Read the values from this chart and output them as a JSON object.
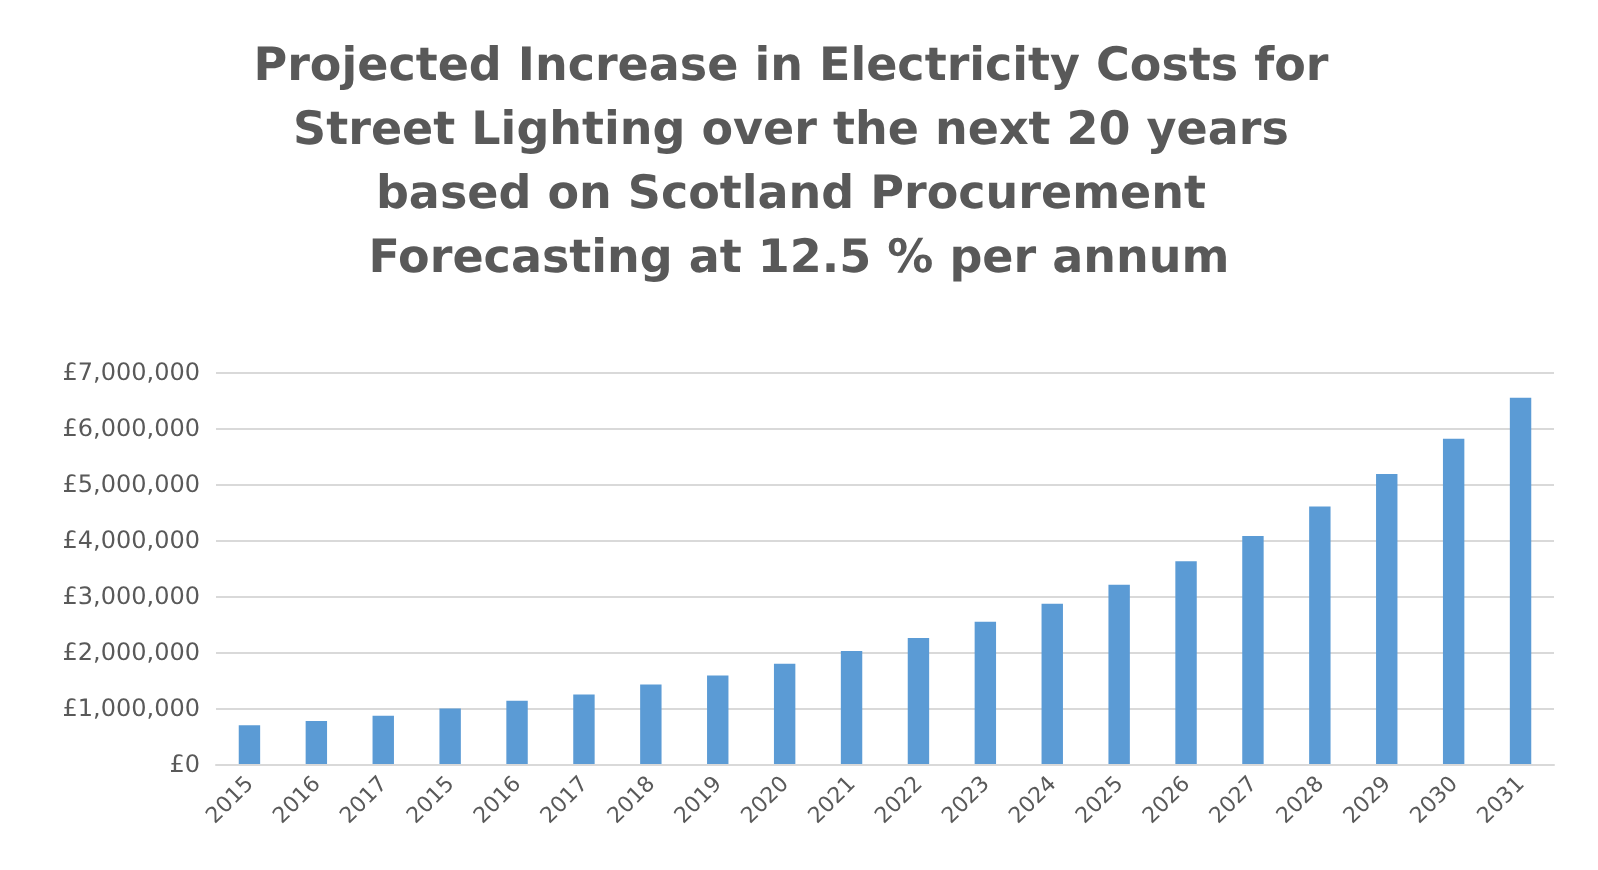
{
  "chart_data": {
    "type": "bar",
    "title": "Projected Increase in Electricity Costs for Street Lighting over the next 20 years based on Scotland Procurement Forecasting at 12.5 % per annum",
    "categories": [
      "2015",
      "2016",
      "2017",
      "2015",
      "2016",
      "2017",
      "2018",
      "2019",
      "2020",
      "2021",
      "2022",
      "2023",
      "2024",
      "2025",
      "2026",
      "2027",
      "2028",
      "2029",
      "2030",
      "2031"
    ],
    "values": [
      690000,
      770000,
      860000,
      990000,
      1130000,
      1240000,
      1420000,
      1580000,
      1790000,
      2020000,
      2250000,
      2540000,
      2860000,
      3200000,
      3620000,
      4070000,
      4600000,
      5180000,
      5810000,
      6540000
    ],
    "color": "#5b9bd5",
    "ylim": [
      0,
      7000000
    ],
    "yticks": [
      {
        "value": 0,
        "label": "£0"
      },
      {
        "value": 1000000,
        "label": "£1,000,000"
      },
      {
        "value": 2000000,
        "label": "£2,000,000"
      },
      {
        "value": 3000000,
        "label": "£3,000,000"
      },
      {
        "value": 4000000,
        "label": "£4,000,000"
      },
      {
        "value": 5000000,
        "label": "£5,000,000"
      },
      {
        "value": 6000000,
        "label": "£6,000,000"
      },
      {
        "value": 7000000,
        "label": "£7,000,000"
      }
    ],
    "grid": true
  }
}
